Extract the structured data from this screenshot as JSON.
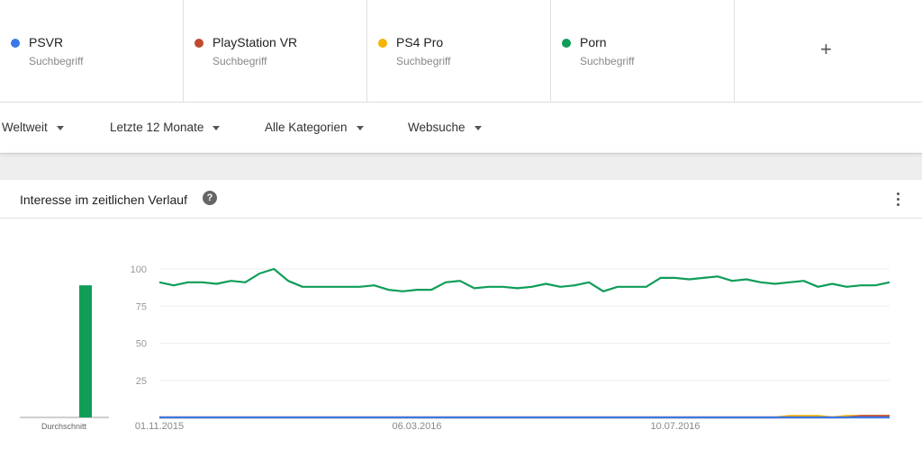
{
  "terms": [
    {
      "name": "PSVR",
      "type": "Suchbegriff",
      "color": "#3b78e7"
    },
    {
      "name": "PlayStation VR",
      "type": "Suchbegriff",
      "color": "#c2492e"
    },
    {
      "name": "PS4 Pro",
      "type": "Suchbegriff",
      "color": "#f4b400"
    },
    {
      "name": "Porn",
      "type": "Suchbegriff",
      "color": "#0f9d58"
    }
  ],
  "add_label": "+",
  "filters": {
    "region": "Weltweit",
    "time": "Letzte 12 Monate",
    "category": "Alle Kategorien",
    "search_type": "Websuche"
  },
  "card": {
    "title": "Interesse im zeitlichen Verlauf",
    "help": "?"
  },
  "chart_data": {
    "type": "line",
    "y_ticks": [
      "100",
      "75",
      "50",
      "25"
    ],
    "ylim": [
      0,
      100
    ],
    "x_tick_labels": [
      "01.11.2015",
      "06.03.2016",
      "10.07.2016"
    ],
    "average_label": "Durchschnitt",
    "average": {
      "PSVR": 0,
      "PlayStation VR": 0,
      "PS4 Pro": 0,
      "Porn": 89
    },
    "series": [
      {
        "name": "Porn",
        "color": "#0f9d58",
        "values": [
          91,
          89,
          91,
          91,
          90,
          92,
          91,
          97,
          100,
          92,
          88,
          88,
          88,
          88,
          88,
          89,
          86,
          85,
          86,
          86,
          91,
          92,
          87,
          88,
          88,
          87,
          88,
          90,
          88,
          89,
          91,
          85,
          88,
          88,
          88,
          94,
          94,
          93,
          94,
          95,
          92,
          93,
          91,
          90,
          91,
          92,
          88,
          90,
          88,
          89,
          89,
          91
        ]
      },
      {
        "name": "PS4 Pro",
        "color": "#f4b400",
        "values": [
          0,
          0,
          0,
          0,
          0,
          0,
          0,
          0,
          0,
          0,
          0,
          0,
          0,
          0,
          0,
          0,
          0,
          0,
          0,
          0,
          0,
          0,
          0,
          0,
          0,
          0,
          0,
          0,
          0,
          0,
          0,
          0,
          0,
          0,
          0,
          0,
          0,
          0,
          0,
          0,
          0,
          0,
          0,
          0,
          1,
          1,
          1,
          0,
          1,
          1,
          1,
          1
        ]
      },
      {
        "name": "PlayStation VR",
        "color": "#c2492e",
        "values": [
          0,
          0,
          0,
          0,
          0,
          0,
          0,
          0,
          0,
          0,
          0,
          0,
          0,
          0,
          0,
          0,
          0,
          0,
          0,
          0,
          0,
          0,
          0,
          0,
          0,
          0,
          0,
          0,
          0,
          0,
          0,
          0,
          0,
          0,
          0,
          0,
          0,
          0,
          0,
          0,
          0,
          0,
          0,
          0,
          0,
          0,
          0,
          0,
          0,
          1,
          1,
          1
        ]
      },
      {
        "name": "PSVR",
        "color": "#3b78e7",
        "values": [
          0,
          0,
          0,
          0,
          0,
          0,
          0,
          0,
          0,
          0,
          0,
          0,
          0,
          0,
          0,
          0,
          0,
          0,
          0,
          0,
          0,
          0,
          0,
          0,
          0,
          0,
          0,
          0,
          0,
          0,
          0,
          0,
          0,
          0,
          0,
          0,
          0,
          0,
          0,
          0,
          0,
          0,
          0,
          0,
          0,
          0,
          0,
          0,
          0,
          0,
          0,
          0
        ]
      }
    ]
  }
}
